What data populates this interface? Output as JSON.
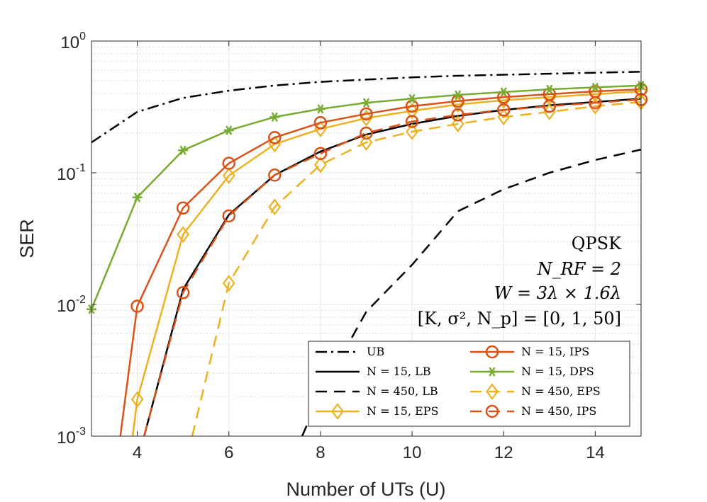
{
  "chart_data": {
    "type": "line",
    "xlabel": "Number of UTs (U)",
    "ylabel": "SER",
    "xlim": [
      3,
      15
    ],
    "ylim": [
      0.001,
      1
    ],
    "yscale": "log",
    "xticks": [
      4,
      6,
      8,
      10,
      12,
      14
    ],
    "yticks": [
      {
        "value": 0.001,
        "base": "10",
        "exp": "-3"
      },
      {
        "value": 0.01,
        "base": "10",
        "exp": "-2"
      },
      {
        "value": 0.1,
        "base": "10",
        "exp": "-1"
      },
      {
        "value": 1,
        "base": "10",
        "exp": "0"
      }
    ],
    "grid": true,
    "legend_position": "bottom-right",
    "annotations": [
      "QPSK",
      "N_RF = 2",
      "W = 3λ × 1.6λ",
      "[K, σ², N_p] = [0, 1, 50]"
    ],
    "series": [
      {
        "name": "UB",
        "legend": "UB",
        "color": "#000000",
        "style": "dashdot",
        "marker": "none",
        "x": [
          3,
          4,
          5,
          6,
          7,
          8,
          9,
          10,
          11,
          12,
          13,
          14,
          15
        ],
        "y": [
          0.17,
          0.29,
          0.37,
          0.42,
          0.46,
          0.49,
          0.51,
          0.53,
          0.545,
          0.555,
          0.565,
          0.575,
          0.585
        ]
      },
      {
        "name": "N = 15, LB",
        "legend": "N = 15, LB",
        "color": "#000000",
        "style": "solid",
        "marker": "none",
        "x": [
          4.15,
          5,
          6,
          7,
          8,
          9,
          10,
          11,
          12,
          13,
          14,
          15
        ],
        "y": [
          0.001,
          0.013,
          0.048,
          0.096,
          0.145,
          0.195,
          0.235,
          0.27,
          0.3,
          0.325,
          0.345,
          0.365
        ]
      },
      {
        "name": "N = 450, LB",
        "legend": "N = 450, LB",
        "color": "#000000",
        "style": "dashed",
        "marker": "none",
        "x": [
          7.6,
          8,
          9,
          10,
          11,
          12,
          13,
          14,
          15
        ],
        "y": [
          0.001,
          0.0021,
          0.0088,
          0.02,
          0.051,
          0.075,
          0.1,
          0.125,
          0.15
        ]
      },
      {
        "name": "N = 15, EPS",
        "legend": "N = 15, EPS",
        "color": "#EDB120",
        "style": "solid",
        "marker": "diamond",
        "x": [
          3.9,
          4,
          5,
          6,
          7,
          8,
          9,
          10,
          11,
          12,
          13,
          14,
          15
        ],
        "y": [
          0.001,
          0.0019,
          0.034,
          0.095,
          0.165,
          0.215,
          0.26,
          0.295,
          0.33,
          0.355,
          0.375,
          0.395,
          0.415
        ]
      },
      {
        "name": "N = 15, IPS",
        "legend": "N = 15, IPS",
        "color": "#D95319",
        "style": "solid",
        "marker": "circle",
        "x": [
          3.63,
          4,
          5,
          6,
          7,
          8,
          9,
          10,
          11,
          12,
          13,
          14,
          15
        ],
        "y": [
          0.001,
          0.0097,
          0.054,
          0.118,
          0.185,
          0.24,
          0.28,
          0.32,
          0.35,
          0.375,
          0.395,
          0.415,
          0.43
        ]
      },
      {
        "name": "N = 15, DPS",
        "legend": "N = 15, DPS",
        "color": "#77AC30",
        "style": "solid",
        "marker": "asterisk",
        "x": [
          3,
          4,
          5,
          6,
          7,
          8,
          9,
          10,
          11,
          12,
          13,
          14,
          15
        ],
        "y": [
          0.0092,
          0.065,
          0.148,
          0.21,
          0.265,
          0.305,
          0.34,
          0.365,
          0.39,
          0.41,
          0.43,
          0.445,
          0.46
        ]
      },
      {
        "name": "N = 450, EPS",
        "legend": "N = 450, EPS",
        "color": "#EDB120",
        "style": "dashed",
        "marker": "diamond",
        "x": [
          5.2,
          6,
          7,
          8,
          9,
          10,
          11,
          12,
          13,
          14,
          15
        ],
        "y": [
          0.001,
          0.0145,
          0.055,
          0.115,
          0.17,
          0.205,
          0.235,
          0.265,
          0.29,
          0.32,
          0.345
        ]
      },
      {
        "name": "N = 450, IPS",
        "legend": "N = 450, IPS",
        "color": "#D95319",
        "style": "dashed",
        "marker": "circle",
        "x": [
          4.15,
          5,
          6,
          7,
          8,
          9,
          10,
          11,
          12,
          13,
          14,
          15
        ],
        "y": [
          0.001,
          0.0123,
          0.047,
          0.096,
          0.14,
          0.2,
          0.245,
          0.275,
          0.3,
          0.32,
          0.34,
          0.36
        ]
      }
    ],
    "legend_order": [
      "UB",
      "N = 15, IPS",
      "N = 15, LB",
      "N = 15, DPS",
      "N = 450, LB",
      "N = 450, EPS",
      "N = 15, EPS",
      "N = 450, IPS"
    ]
  }
}
